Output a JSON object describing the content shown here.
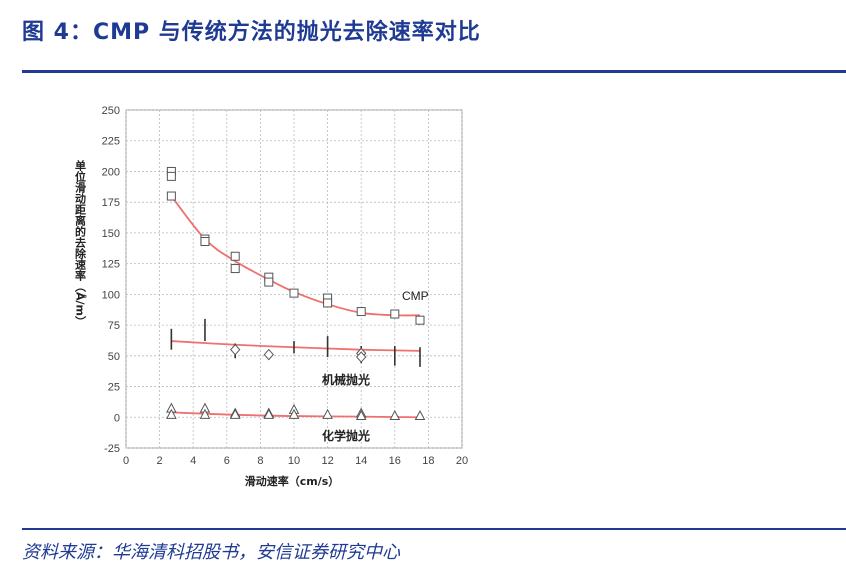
{
  "header": {
    "title": "图 4：CMP 与传统方法的抛光去除速率对比"
  },
  "footer": {
    "source": "资料来源：华海清科招股书，安信证券研究中心"
  },
  "colors": {
    "brand": "#1f3a93",
    "curve": "#f07070",
    "marker": "#555555"
  },
  "chart_data": {
    "type": "scatter",
    "xlabel": "滑动速率（cm/s）",
    "ylabel": "单位滑动距离的去除速率（Å/m）",
    "xlim": [
      0,
      20
    ],
    "ylim": [
      -25,
      250
    ],
    "xticks": [
      0,
      2,
      4,
      6,
      8,
      10,
      12,
      14,
      16,
      18,
      20
    ],
    "yticks": [
      -25,
      0,
      25,
      50,
      75,
      100,
      125,
      150,
      175,
      200,
      225,
      250
    ],
    "grid": true,
    "series": [
      {
        "name": "CMP",
        "marker": "square",
        "points": [
          [
            2.7,
            200
          ],
          [
            2.7,
            196
          ],
          [
            2.7,
            180
          ],
          [
            4.7,
            145
          ],
          [
            4.7,
            143
          ],
          [
            6.5,
            131
          ],
          [
            6.5,
            121
          ],
          [
            8.5,
            114
          ],
          [
            8.5,
            110
          ],
          [
            10,
            101
          ],
          [
            12,
            97
          ],
          [
            12,
            93
          ],
          [
            14,
            86
          ],
          [
            16,
            84
          ],
          [
            17.5,
            79
          ]
        ],
        "fit": [
          [
            2.7,
            180
          ],
          [
            4.7,
            145
          ],
          [
            6.5,
            127
          ],
          [
            8.5,
            112
          ],
          [
            10,
            102
          ],
          [
            12,
            92
          ],
          [
            14,
            85
          ],
          [
            16,
            83
          ],
          [
            17.5,
            83
          ]
        ]
      },
      {
        "name": "机械抛光",
        "marker": "diamond",
        "points": [
          [
            6.5,
            55
          ],
          [
            8.5,
            51
          ],
          [
            14,
            52
          ],
          [
            14,
            49
          ]
        ],
        "ranges": [
          [
            2.7,
            55,
            72
          ],
          [
            4.7,
            62,
            80
          ],
          [
            6.5,
            48,
            60
          ],
          [
            10,
            52,
            62
          ],
          [
            12,
            49,
            66
          ],
          [
            14,
            44,
            58
          ],
          [
            16,
            42,
            58
          ],
          [
            17.5,
            41,
            57
          ]
        ],
        "fit": [
          [
            2.7,
            62
          ],
          [
            6.5,
            59
          ],
          [
            10,
            57
          ],
          [
            14,
            55
          ],
          [
            17.5,
            54
          ]
        ]
      },
      {
        "name": "化学抛光",
        "marker": "triangle",
        "points": [
          [
            2.7,
            7
          ],
          [
            2.7,
            2
          ],
          [
            4.7,
            7
          ],
          [
            4.7,
            2
          ],
          [
            6.5,
            3
          ],
          [
            6.5,
            2
          ],
          [
            8.5,
            3
          ],
          [
            8.5,
            2
          ],
          [
            10,
            6
          ],
          [
            10,
            2
          ],
          [
            12,
            2
          ],
          [
            14,
            3
          ],
          [
            14,
            1
          ],
          [
            16,
            1
          ],
          [
            17.5,
            1
          ]
        ],
        "fit": [
          [
            2.7,
            4
          ],
          [
            6.5,
            2
          ],
          [
            10,
            1
          ],
          [
            14,
            0.5
          ],
          [
            17.5,
            0
          ]
        ]
      }
    ]
  }
}
